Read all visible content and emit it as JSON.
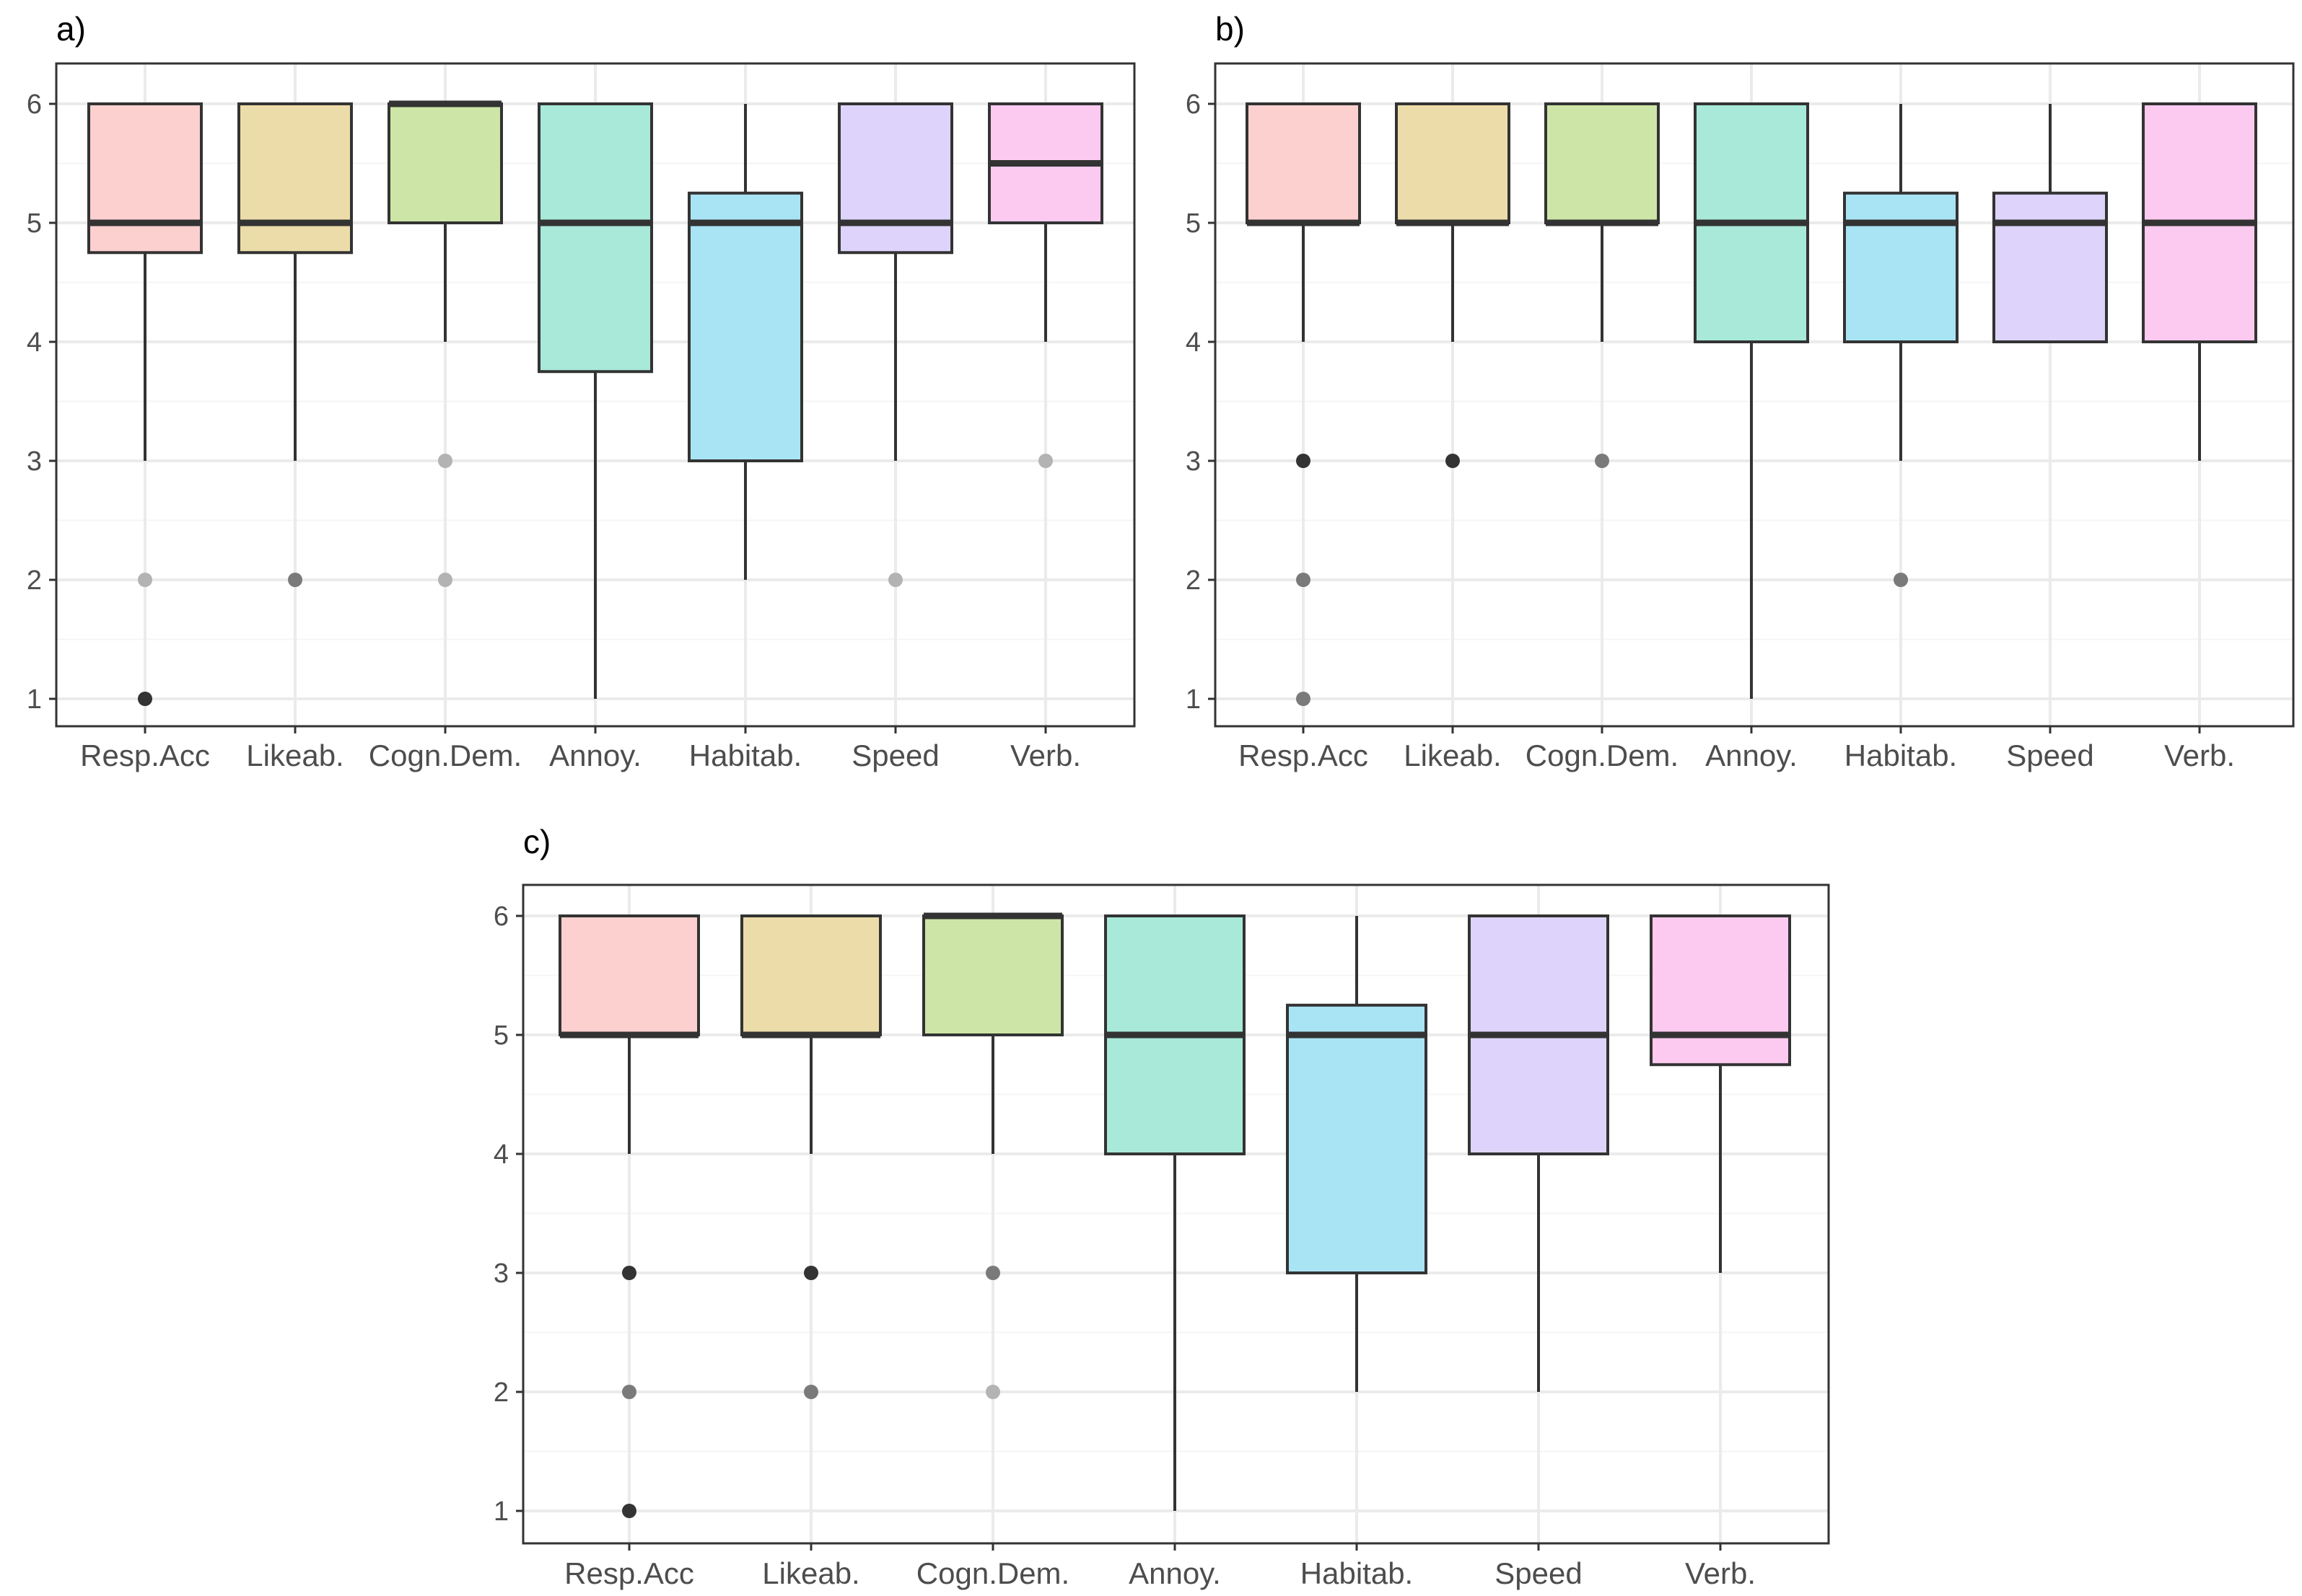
{
  "chart_data": [
    {
      "panel": "a)",
      "type": "box",
      "categories": [
        "Resp.Acc",
        "Likeab.",
        "Cogn.Dem.",
        "Annoy.",
        "Habitab.",
        "Speed",
        "Verb."
      ],
      "ylim": [
        1,
        6
      ],
      "yticks": [
        "1",
        "2",
        "3",
        "4",
        "5",
        "6"
      ],
      "grid": true,
      "boxes": [
        {
          "q1": 4.75,
          "median": 5,
          "q3": 6,
          "whisker_low": 3,
          "whisker_high": 6,
          "outliers": [
            {
              "y": 2,
              "shade": "light"
            },
            {
              "y": 1,
              "shade": "dark"
            }
          ]
        },
        {
          "q1": 4.75,
          "median": 5,
          "q3": 6,
          "whisker_low": 3,
          "whisker_high": 6,
          "outliers": [
            {
              "y": 2,
              "shade": "medium"
            }
          ]
        },
        {
          "q1": 5,
          "median": 6,
          "q3": 6,
          "whisker_low": 4,
          "whisker_high": 6,
          "outliers": [
            {
              "y": 3,
              "shade": "light"
            },
            {
              "y": 2,
              "shade": "light"
            }
          ]
        },
        {
          "q1": 3.75,
          "median": 5,
          "q3": 6,
          "whisker_low": 1,
          "whisker_high": 6,
          "outliers": []
        },
        {
          "q1": 3,
          "median": 5,
          "q3": 5.25,
          "whisker_low": 2,
          "whisker_high": 6,
          "outliers": []
        },
        {
          "q1": 4.75,
          "median": 5,
          "q3": 6,
          "whisker_low": 3,
          "whisker_high": 6,
          "outliers": [
            {
              "y": 2,
              "shade": "light"
            }
          ]
        },
        {
          "q1": 5,
          "median": 5.5,
          "q3": 6,
          "whisker_low": 4,
          "whisker_high": 6,
          "outliers": [
            {
              "y": 3,
              "shade": "light"
            }
          ]
        }
      ]
    },
    {
      "panel": "b)",
      "type": "box",
      "categories": [
        "Resp.Acc",
        "Likeab.",
        "Cogn.Dem.",
        "Annoy.",
        "Habitab.",
        "Speed",
        "Verb."
      ],
      "ylim": [
        1,
        6
      ],
      "yticks": [
        "1",
        "2",
        "3",
        "4",
        "5",
        "6"
      ],
      "grid": true,
      "boxes": [
        {
          "q1": 5,
          "median": 5,
          "q3": 6,
          "whisker_low": 4,
          "whisker_high": 6,
          "outliers": [
            {
              "y": 3,
              "shade": "dark"
            },
            {
              "y": 2,
              "shade": "medium"
            },
            {
              "y": 1,
              "shade": "medium"
            }
          ]
        },
        {
          "q1": 5,
          "median": 5,
          "q3": 6,
          "whisker_low": 4,
          "whisker_high": 6,
          "outliers": [
            {
              "y": 3,
              "shade": "dark"
            }
          ]
        },
        {
          "q1": 5,
          "median": 5,
          "q3": 6,
          "whisker_low": 4,
          "whisker_high": 6,
          "outliers": [
            {
              "y": 3,
              "shade": "medium"
            }
          ]
        },
        {
          "q1": 4,
          "median": 5,
          "q3": 6,
          "whisker_low": 1,
          "whisker_high": 6,
          "outliers": []
        },
        {
          "q1": 4,
          "median": 5,
          "q3": 5.25,
          "whisker_low": 3,
          "whisker_high": 6,
          "outliers": [
            {
              "y": 2,
              "shade": "medium"
            }
          ]
        },
        {
          "q1": 4,
          "median": 5,
          "q3": 5.25,
          "whisker_low": 4,
          "whisker_high": 6,
          "outliers": []
        },
        {
          "q1": 4,
          "median": 5,
          "q3": 6,
          "whisker_low": 3,
          "whisker_high": 6,
          "outliers": []
        }
      ]
    },
    {
      "panel": "c)",
      "type": "box",
      "categories": [
        "Resp.Acc",
        "Likeab.",
        "Cogn.Dem.",
        "Annoy.",
        "Habitab.",
        "Speed",
        "Verb."
      ],
      "ylim": [
        1,
        6
      ],
      "yticks": [
        "1",
        "2",
        "3",
        "4",
        "5",
        "6"
      ],
      "grid": true,
      "boxes": [
        {
          "q1": 5,
          "median": 5,
          "q3": 6,
          "whisker_low": 4,
          "whisker_high": 6,
          "outliers": [
            {
              "y": 3,
              "shade": "dark"
            },
            {
              "y": 2,
              "shade": "medium"
            },
            {
              "y": 1,
              "shade": "dark"
            }
          ]
        },
        {
          "q1": 5,
          "median": 5,
          "q3": 6,
          "whisker_low": 4,
          "whisker_high": 6,
          "outliers": [
            {
              "y": 3,
              "shade": "dark"
            },
            {
              "y": 2,
              "shade": "medium"
            }
          ]
        },
        {
          "q1": 5,
          "median": 6,
          "q3": 6,
          "whisker_low": 4,
          "whisker_high": 6,
          "outliers": [
            {
              "y": 3,
              "shade": "medium"
            },
            {
              "y": 2,
              "shade": "light"
            }
          ]
        },
        {
          "q1": 4,
          "median": 5,
          "q3": 6,
          "whisker_low": 1,
          "whisker_high": 6,
          "outliers": []
        },
        {
          "q1": 3,
          "median": 5,
          "q3": 5.25,
          "whisker_low": 2,
          "whisker_high": 6,
          "outliers": []
        },
        {
          "q1": 4,
          "median": 5,
          "q3": 6,
          "whisker_low": 2,
          "whisker_high": 6,
          "outliers": []
        },
        {
          "q1": 4.75,
          "median": 5,
          "q3": 6,
          "whisker_low": 3,
          "whisker_high": 6,
          "outliers": []
        }
      ]
    }
  ],
  "colors": {
    "fills": [
      "#fcd0cf",
      "#ecdca9",
      "#cde6a7",
      "#a8e9d9",
      "#a9e4f5",
      "#ded4fb",
      "#fccaf0"
    ],
    "box_stroke": "#333333",
    "whisker": "#333333",
    "median": "#333333",
    "grid_major": "#ebebeb",
    "grid_minor": "#f5f5f5",
    "frame": "#333333",
    "outlier_shades": {
      "light": "#b3b3b3",
      "medium": "#7a7a7a",
      "dark": "#333333"
    }
  }
}
